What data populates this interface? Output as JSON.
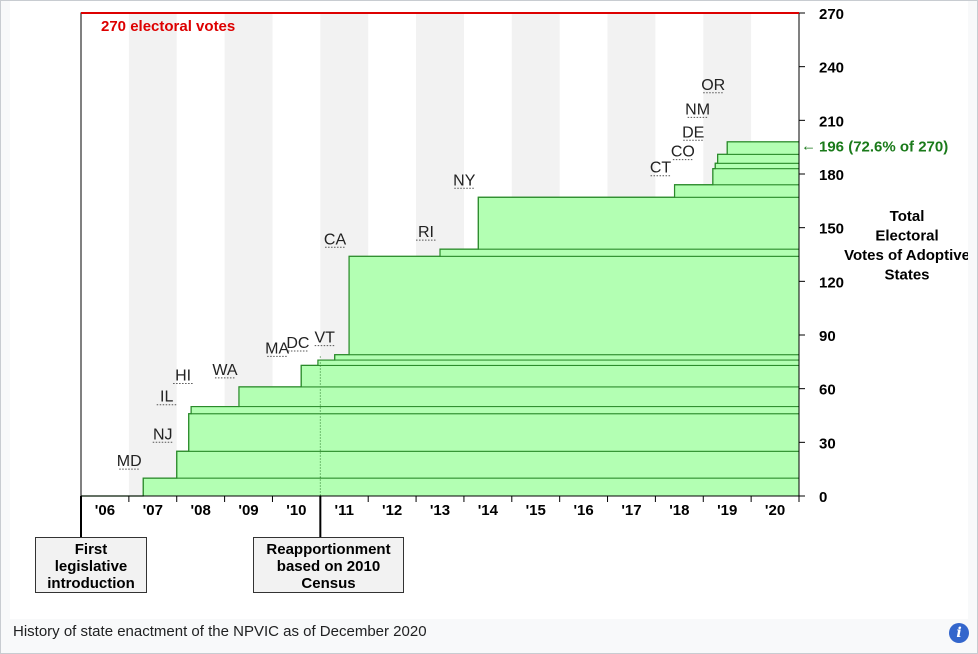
{
  "caption": "History of state enactment of the NPVIC as of December 2020",
  "callouts": {
    "first": "First legislative introduction",
    "reapportionment": "Reapportionment based on 2010 Census"
  },
  "colors": {
    "fill": "#b3ffb3",
    "stroke": "#2a8a2a",
    "target": "#dd0000",
    "current": "#1a7a1a",
    "stripe": "#f2f2f2"
  },
  "chart_data": {
    "type": "area",
    "x_tick_labels": [
      "'06",
      "'07",
      "'08",
      "'09",
      "'10",
      "'11",
      "'12",
      "'13",
      "'14",
      "'15",
      "'16",
      "'17",
      "'18",
      "'19",
      "'20"
    ],
    "ylim": [
      0,
      270
    ],
    "y_ticks": [
      0,
      30,
      60,
      90,
      120,
      150,
      180,
      210,
      240,
      270
    ],
    "ylabel": "Total Electoral Votes of Adoptive States",
    "target": {
      "value": 270,
      "label": "270 electoral votes"
    },
    "current": {
      "value": 196,
      "label": "196 (72.6% of 270)"
    },
    "reapportionment_year": 2011.0,
    "states": [
      {
        "state": "MD",
        "year": 2007.3,
        "votes": 10
      },
      {
        "state": "NJ",
        "year": 2008.0,
        "votes": 15
      },
      {
        "state": "IL",
        "year": 2008.25,
        "votes": 21
      },
      {
        "state": "HI",
        "year": 2008.3,
        "votes": 4
      },
      {
        "state": "WA",
        "year": 2009.3,
        "votes": 11
      },
      {
        "state": "MA",
        "year": 2010.6,
        "votes": 12
      },
      {
        "state": "DC",
        "year": 2010.95,
        "votes": 3
      },
      {
        "state": "VT",
        "year": 2011.3,
        "votes": 3
      },
      {
        "state": "CA",
        "year": 2011.6,
        "votes": 55
      },
      {
        "state": "RI",
        "year": 2013.5,
        "votes": 4
      },
      {
        "state": "NY",
        "year": 2014.3,
        "votes": 29
      },
      {
        "state": "CT",
        "year": 2018.4,
        "votes": 7
      },
      {
        "state": "CO",
        "year": 2019.2,
        "votes": 9
      },
      {
        "state": "DE",
        "year": 2019.25,
        "votes": 3
      },
      {
        "state": "NM",
        "year": 2019.3,
        "votes": 5
      },
      {
        "state": "OR",
        "year": 2019.5,
        "votes": 7
      }
    ]
  }
}
